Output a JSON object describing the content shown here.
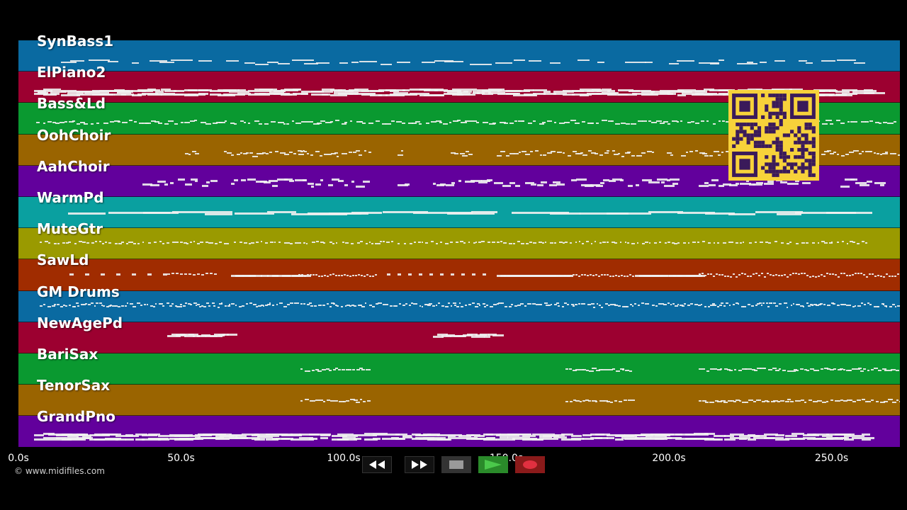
{
  "tracks": [
    {
      "name": "SynBass1",
      "color": "#0a6aa1",
      "pattern": "line-thin"
    },
    {
      "name": "ElPiano2",
      "color": "#9c0030",
      "pattern": "chords"
    },
    {
      "name": "Bass&Ld",
      "color": "#0a9930",
      "pattern": "wavy"
    },
    {
      "name": "OohChoir",
      "color": "#9a6400",
      "pattern": "sparse"
    },
    {
      "name": "AahChoir",
      "color": "#62009c",
      "pattern": "sparse-low"
    },
    {
      "name": "WarmPd",
      "color": "#0aa0a0",
      "pattern": "line"
    },
    {
      "name": "MuteGtr",
      "color": "#9a9a00",
      "pattern": "dots"
    },
    {
      "name": "SawLd",
      "color": "#a02c00",
      "pattern": "dashes"
    },
    {
      "name": "GM Drums",
      "color": "#0a6aa1",
      "pattern": "dots-dense"
    },
    {
      "name": "NewAgePd",
      "color": "#9c0030",
      "pattern": "pads"
    },
    {
      "name": "BariSax",
      "color": "#0a9930",
      "pattern": "sax"
    },
    {
      "name": "TenorSax",
      "color": "#9a6400",
      "pattern": "sax"
    },
    {
      "name": "GrandPno",
      "color": "#62009c",
      "pattern": "chords"
    }
  ],
  "timeline": {
    "ticks": [
      "0.0s",
      "50.0s",
      "100.0s",
      "150.0s",
      "200.0s",
      "250.0s"
    ],
    "tick_seconds": [
      0,
      50,
      100,
      150,
      200,
      250
    ],
    "max_seconds": 270
  },
  "footer": {
    "copyright": "© www.midifiles.com"
  },
  "controls": {
    "rewind": "rewind-icon",
    "fast_forward": "fast-forward-icon",
    "stop": "stop-icon",
    "play": "play-icon",
    "record": "record-icon"
  },
  "colors": {
    "background": "#000000",
    "qr": "#f7d23a",
    "qr_dark": "#3a1a5a",
    "play": "#2a8a2a",
    "record": "#8a1a1a"
  }
}
